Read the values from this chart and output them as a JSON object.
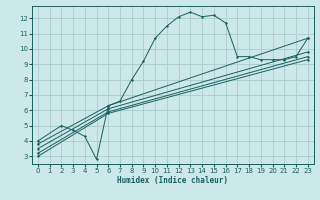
{
  "xlabel": "Humidex (Indice chaleur)",
  "bg_color": "#cce8e8",
  "grid_color": "#aacccc",
  "line_color": "#1a5f5f",
  "xlim": [
    -0.5,
    23.5
  ],
  "ylim": [
    2.5,
    12.8
  ],
  "xticks": [
    0,
    1,
    2,
    3,
    4,
    5,
    6,
    7,
    8,
    9,
    10,
    11,
    12,
    13,
    14,
    15,
    16,
    17,
    18,
    19,
    20,
    21,
    22,
    23
  ],
  "yticks": [
    3,
    4,
    5,
    6,
    7,
    8,
    9,
    10,
    11,
    12
  ],
  "curve1_x": [
    0,
    2,
    3,
    4,
    5,
    6,
    7,
    8,
    9,
    10,
    11,
    12,
    13,
    14,
    15,
    16,
    17,
    18,
    19,
    20,
    21,
    22,
    23
  ],
  "curve1_y": [
    4.0,
    5.0,
    4.7,
    4.3,
    2.8,
    6.3,
    6.6,
    8.0,
    9.2,
    10.7,
    11.5,
    12.1,
    12.4,
    12.1,
    12.2,
    11.7,
    9.5,
    9.5,
    9.3,
    9.3,
    9.3,
    9.5,
    10.7
  ],
  "line2_x": [
    0,
    6,
    23
  ],
  "line2_y": [
    3.0,
    5.8,
    9.3
  ],
  "line3_x": [
    0,
    6,
    23
  ],
  "line3_y": [
    3.2,
    5.9,
    9.5
  ],
  "line4_x": [
    0,
    6,
    23
  ],
  "line4_y": [
    3.5,
    6.1,
    9.8
  ],
  "line5_x": [
    0,
    6,
    23
  ],
  "line5_y": [
    3.8,
    6.3,
    10.7
  ]
}
